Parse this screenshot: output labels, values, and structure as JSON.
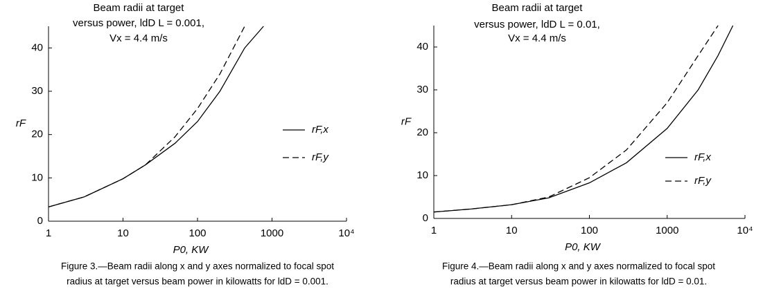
{
  "chart_data": [
    {
      "type": "line",
      "annotation": [
        "Beam radii at target",
        "versus power, ldD L = 0.001,",
        "Vx = 4.4 m/s"
      ],
      "xlabel": "P0, KW",
      "ylabel": "rF",
      "xscale": "log",
      "xlim": [
        1,
        10000
      ],
      "xticks": [
        1,
        10,
        100,
        1000,
        {
          "value": 10000,
          "label": "10⁴"
        }
      ],
      "ylim": [
        0,
        45
      ],
      "yticks": [
        0,
        10,
        20,
        30,
        40
      ],
      "legend": "right",
      "x": [
        1,
        3,
        10,
        20,
        50,
        100,
        200,
        430,
        770
      ],
      "series": [
        {
          "name": "rF,x",
          "color": "#000000",
          "dash": "solid",
          "values": [
            3.3,
            5.6,
            9.8,
            13,
            18,
            23,
            30,
            40,
            45
          ]
        },
        {
          "name": "rF,y",
          "color": "#000000",
          "dash": "dashed",
          "values": [
            3.3,
            5.6,
            9.8,
            13,
            19.5,
            26,
            34,
            45,
            null
          ]
        }
      ],
      "caption": [
        "Figure 3.—Beam radii along x and y axes normalized to focal spot",
        "radius at target versus beam power in kilowatts for ldD = 0.001."
      ]
    },
    {
      "type": "line",
      "annotation": [
        "Beam radii at target",
        "versus power, ldD L = 0.01,",
        "Vx = 4.4 m/s"
      ],
      "xlabel": "P0, KW",
      "ylabel": "rF",
      "xscale": "log",
      "xlim": [
        1,
        10000
      ],
      "xticks": [
        1,
        10,
        100,
        1000,
        {
          "value": 10000,
          "label": "10⁴"
        }
      ],
      "ylim": [
        0,
        45
      ],
      "yticks": [
        0,
        10,
        20,
        30,
        40
      ],
      "legend": "right",
      "x": [
        1,
        3,
        10,
        30,
        100,
        300,
        1000,
        2500,
        4500,
        7000
      ],
      "series": [
        {
          "name": "rF,x",
          "color": "#000000",
          "dash": "solid",
          "values": [
            1.5,
            2.2,
            3.2,
            4.8,
            8.3,
            13,
            21,
            30,
            38,
            45
          ]
        },
        {
          "name": "rF,y",
          "color": "#000000",
          "dash": "dashed",
          "values": [
            1.5,
            2.2,
            3.2,
            5,
            9.5,
            16,
            27,
            38,
            45,
            null
          ]
        }
      ],
      "caption": [
        "Figure 4.—Beam radii along x and y axes normalized to focal spot",
        "radius at target versus beam power in kilowatts for ldD = 0.01."
      ]
    }
  ]
}
